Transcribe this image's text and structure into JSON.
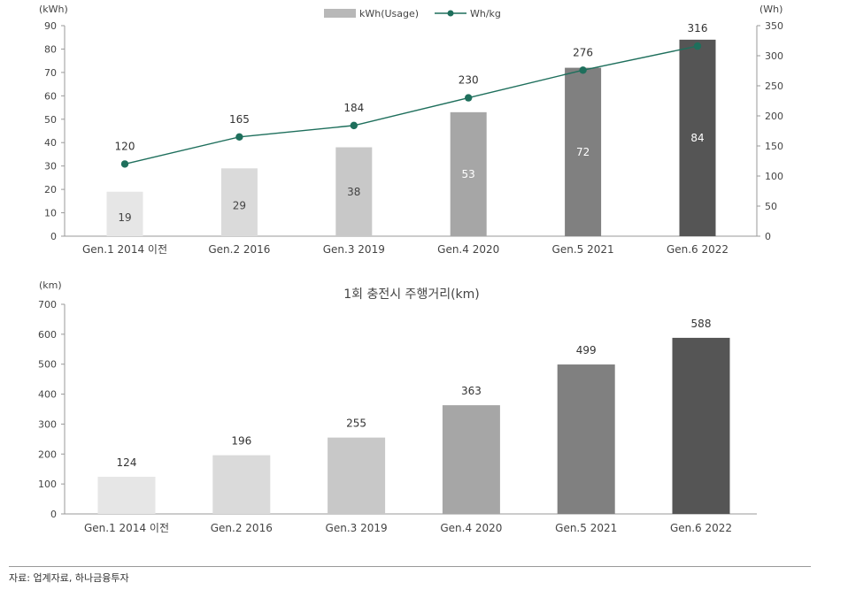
{
  "source": "자료: 업계자료, 하나금융투자",
  "chart_data": [
    {
      "type": "bar+line",
      "categories": [
        "Gen.1 2014 이전",
        "Gen.2 2016",
        "Gen.3 2019",
        "Gen.4 2020",
        "Gen.5 2021",
        "Gen.6 2022"
      ],
      "series": [
        {
          "name": "kWh(Usage)",
          "type": "bar",
          "axis": "left",
          "values": [
            19,
            29,
            38,
            53,
            72,
            84
          ],
          "colors": [
            "#e6e6e6",
            "#dadada",
            "#c8c8c8",
            "#a6a6a6",
            "#808080",
            "#555555"
          ]
        },
        {
          "name": "Wh/kg",
          "type": "line",
          "axis": "right",
          "values": [
            120,
            165,
            184,
            230,
            276,
            316
          ],
          "color": "#1e6f5c"
        }
      ],
      "ylabel_left": "(kWh)",
      "ylabel_right": "(Wh)",
      "ylim_left": [
        0,
        90
      ],
      "yticks_left": [
        0,
        10,
        20,
        30,
        40,
        50,
        60,
        70,
        80,
        90
      ],
      "ylim_right": [
        0,
        350
      ],
      "yticks_right": [
        0,
        50,
        100,
        150,
        200,
        250,
        300,
        350
      ],
      "legend_position": "top-center",
      "grid": false
    },
    {
      "type": "bar",
      "title": "1회 충전시 주행거리(km)",
      "categories": [
        "Gen.1 2014 이전",
        "Gen.2 2016",
        "Gen.3 2019",
        "Gen.4 2020",
        "Gen.5 2021",
        "Gen.6 2022"
      ],
      "values": [
        124,
        196,
        255,
        363,
        499,
        588
      ],
      "colors": [
        "#e6e6e6",
        "#dadada",
        "#c8c8c8",
        "#a6a6a6",
        "#808080",
        "#555555"
      ],
      "ylabel": "(km)",
      "ylim": [
        0,
        700
      ],
      "yticks": [
        0,
        100,
        200,
        300,
        400,
        500,
        600,
        700
      ],
      "grid": false
    }
  ]
}
